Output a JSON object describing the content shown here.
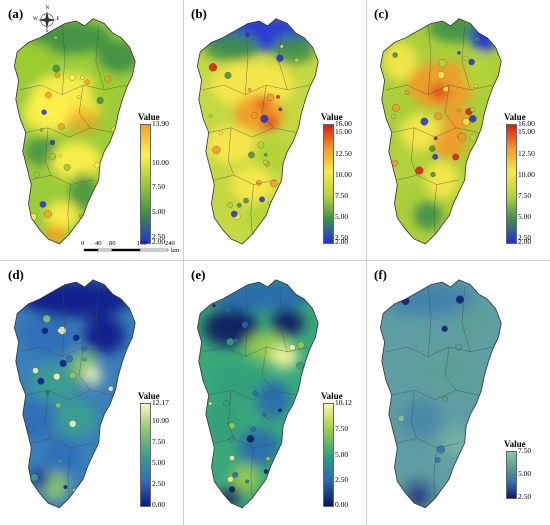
{
  "panels": [
    {
      "label": "(a)",
      "legend_title": "Value",
      "ticks": [
        "13.90",
        "10.00",
        "7.50",
        "5.00",
        "2.50",
        "2.00"
      ],
      "tick_values": [
        13.9,
        10.0,
        7.5,
        5.0,
        2.5,
        2.0
      ],
      "colormap": [
        "#2233dd",
        "#3b8f45",
        "#9ccc2f",
        "#fff14a",
        "#f7a020"
      ],
      "base_color": "#9ccc3a"
    },
    {
      "label": "(b)",
      "legend_title": "Value",
      "ticks": [
        "16.00",
        "15.00",
        "12.50",
        "10.00",
        "7.50",
        "5.00",
        "2.50",
        "2.00"
      ],
      "tick_values": [
        16.0,
        15.0,
        12.5,
        10.0,
        7.5,
        5.0,
        2.5,
        2.0
      ],
      "colormap": [
        "#1e2fe0",
        "#3f8f4a",
        "#b4d43a",
        "#f9e84a",
        "#f39a2a",
        "#dd1b12"
      ],
      "base_color": "#c4d843"
    },
    {
      "label": "(c)",
      "legend_title": "Value",
      "ticks": [
        "16.00",
        "15.00",
        "12.50",
        "10.00",
        "7.50",
        "5.00",
        "2.50",
        "2.00"
      ],
      "tick_values": [
        16.0,
        15.0,
        12.5,
        10.0,
        7.5,
        5.0,
        2.5,
        2.0
      ],
      "colormap": [
        "#1e2fe0",
        "#3f8f4a",
        "#b4d43a",
        "#f9e84a",
        "#f39a2a",
        "#dd1b12"
      ],
      "base_color": "#a9cf3a"
    },
    {
      "label": "(d)",
      "legend_title": "Value",
      "ticks": [
        "12.17",
        "10.00",
        "7.50",
        "5.00",
        "2.50",
        "0.00"
      ],
      "tick_values": [
        12.17,
        10.0,
        7.5,
        5.0,
        2.5,
        0.0
      ],
      "colormap": [
        "#0a1a8a",
        "#2f6fb8",
        "#3aa08e",
        "#8fc86a",
        "#fbf7c4"
      ],
      "base_color": "#3a7fb8"
    },
    {
      "label": "(e)",
      "legend_title": "Value",
      "ticks": [
        "10.12",
        "7.50",
        "5.00",
        "2.50",
        "0.00"
      ],
      "tick_values": [
        10.12,
        7.5,
        5.0,
        2.5,
        0.0
      ],
      "colormap": [
        "#0b1460",
        "#2a6ab0",
        "#32a07a",
        "#9ccd4a",
        "#fbf7a0"
      ],
      "base_color": "#3aa87a"
    },
    {
      "label": "(f)",
      "legend_title": "Value",
      "ticks": [
        "7.50",
        "5.00",
        "2.50"
      ],
      "tick_values": [
        7.5,
        5.0,
        2.5
      ],
      "colormap": [
        "#0a1a70",
        "#2f6fb0",
        "#5aa08c",
        "#8cc4a0"
      ],
      "base_color": "#5f9ea3"
    }
  ],
  "scale_bar": {
    "ticks": [
      "0",
      "40",
      "80",
      "160",
      "240"
    ],
    "tick_values": [
      0,
      40,
      80,
      160,
      240
    ],
    "unit": "km"
  },
  "compass": {
    "n": "N",
    "s": "S",
    "e": "E",
    "w": "W"
  }
}
